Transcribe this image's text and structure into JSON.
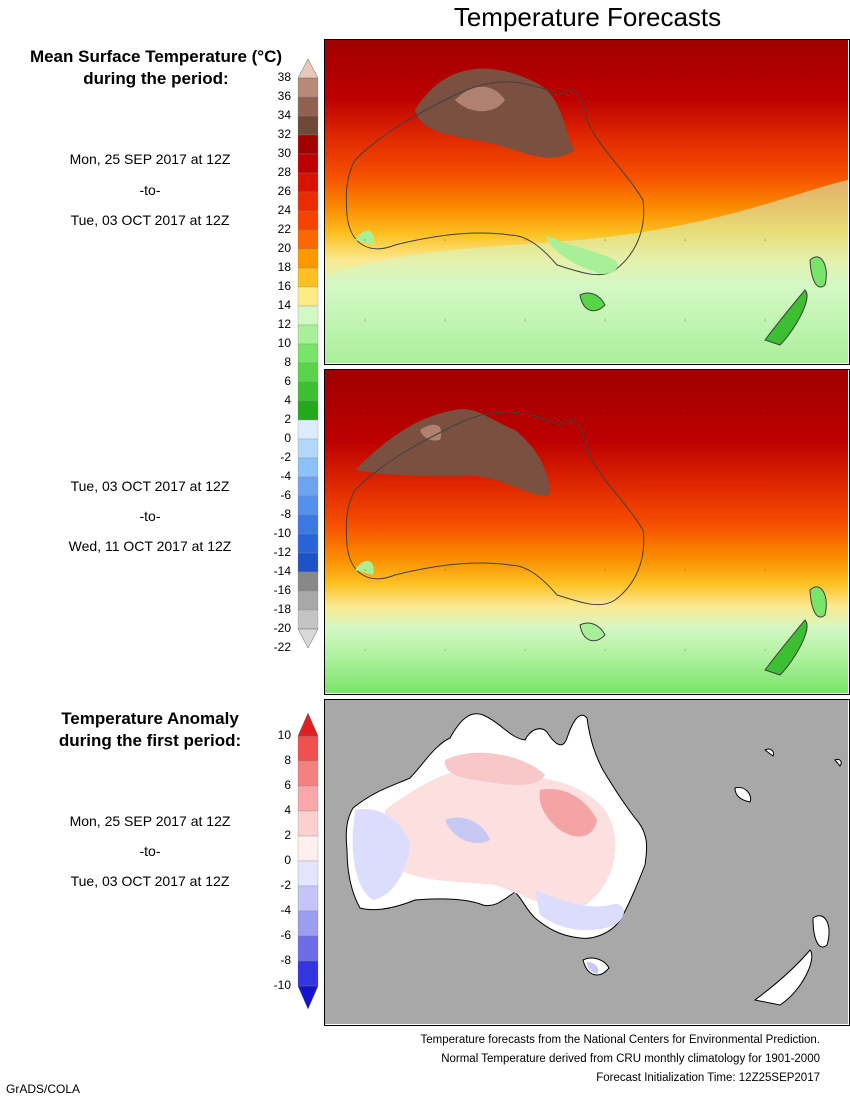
{
  "title": "Temperature Forecasts",
  "mean_panel": {
    "heading_line1": "Mean Surface Temperature (°C)",
    "heading_line2": "during the period:"
  },
  "period1": {
    "start": "Mon, 25 SEP 2017 at 12Z",
    "to": "-to-",
    "end": "Tue, 03 OCT 2017 at 12Z"
  },
  "period2": {
    "start": "Tue, 03 OCT 2017 at 12Z",
    "to": "-to-",
    "end": "Wed, 11 OCT 2017 at 12Z"
  },
  "anomaly_panel": {
    "heading_line1": "Temperature Anomaly",
    "heading_line2": "during the first period:",
    "start": "Mon, 25 SEP 2017 at 12Z",
    "to": "-to-",
    "end": "Tue, 03 OCT 2017 at 12Z"
  },
  "temp_scale": {
    "labels": [
      "38",
      "36",
      "34",
      "32",
      "30",
      "28",
      "26",
      "24",
      "22",
      "20",
      "18",
      "16",
      "14",
      "12",
      "10",
      "8",
      "6",
      "4",
      "2",
      "0",
      "-2",
      "-4",
      "-6",
      "-8",
      "-10",
      "-12",
      "-14",
      "-16",
      "-18",
      "-20",
      "-22"
    ],
    "colors": [
      "#e8c8b8",
      "#b88878",
      "#906050",
      "#6e4838",
      "#a00000",
      "#bc0000",
      "#d81400",
      "#ea2c00",
      "#f64400",
      "#fa6800",
      "#fc9800",
      "#fcc020",
      "#fcec88",
      "#d4f8c4",
      "#a8f098",
      "#78e468",
      "#58d448",
      "#3cc032",
      "#24a81c",
      "#dcecfc",
      "#b4d8fc",
      "#8cc0f8",
      "#6ca4f0",
      "#5490ec",
      "#3c78e4",
      "#2864d8",
      "#1e52c8",
      "#888888",
      "#a8a8a8",
      "#c4c4c4",
      "#d8d8d8"
    ]
  },
  "anomaly_scale": {
    "labels": [
      "10",
      "8",
      "6",
      "4",
      "2",
      "0",
      "-2",
      "-4",
      "-6",
      "-8",
      "-10"
    ],
    "colors": [
      "#e02020",
      "#f05050",
      "#f48080",
      "#f8a8a8",
      "#fcd0d0",
      "#fff0f0",
      "#e4e4fc",
      "#c4c4f8",
      "#9c9cf0",
      "#6c6ce8",
      "#3434e0",
      "#1414d0"
    ]
  },
  "footer": {
    "line1": "Temperature forecasts from the National Centers for Environmental Prediction.",
    "line2": "Normal Temperature derived from CRU monthly climatology for 1901-2000",
    "line3": "Forecast Initialization Time: 12Z25SEP2017"
  },
  "credit": "GrADS/COLA"
}
